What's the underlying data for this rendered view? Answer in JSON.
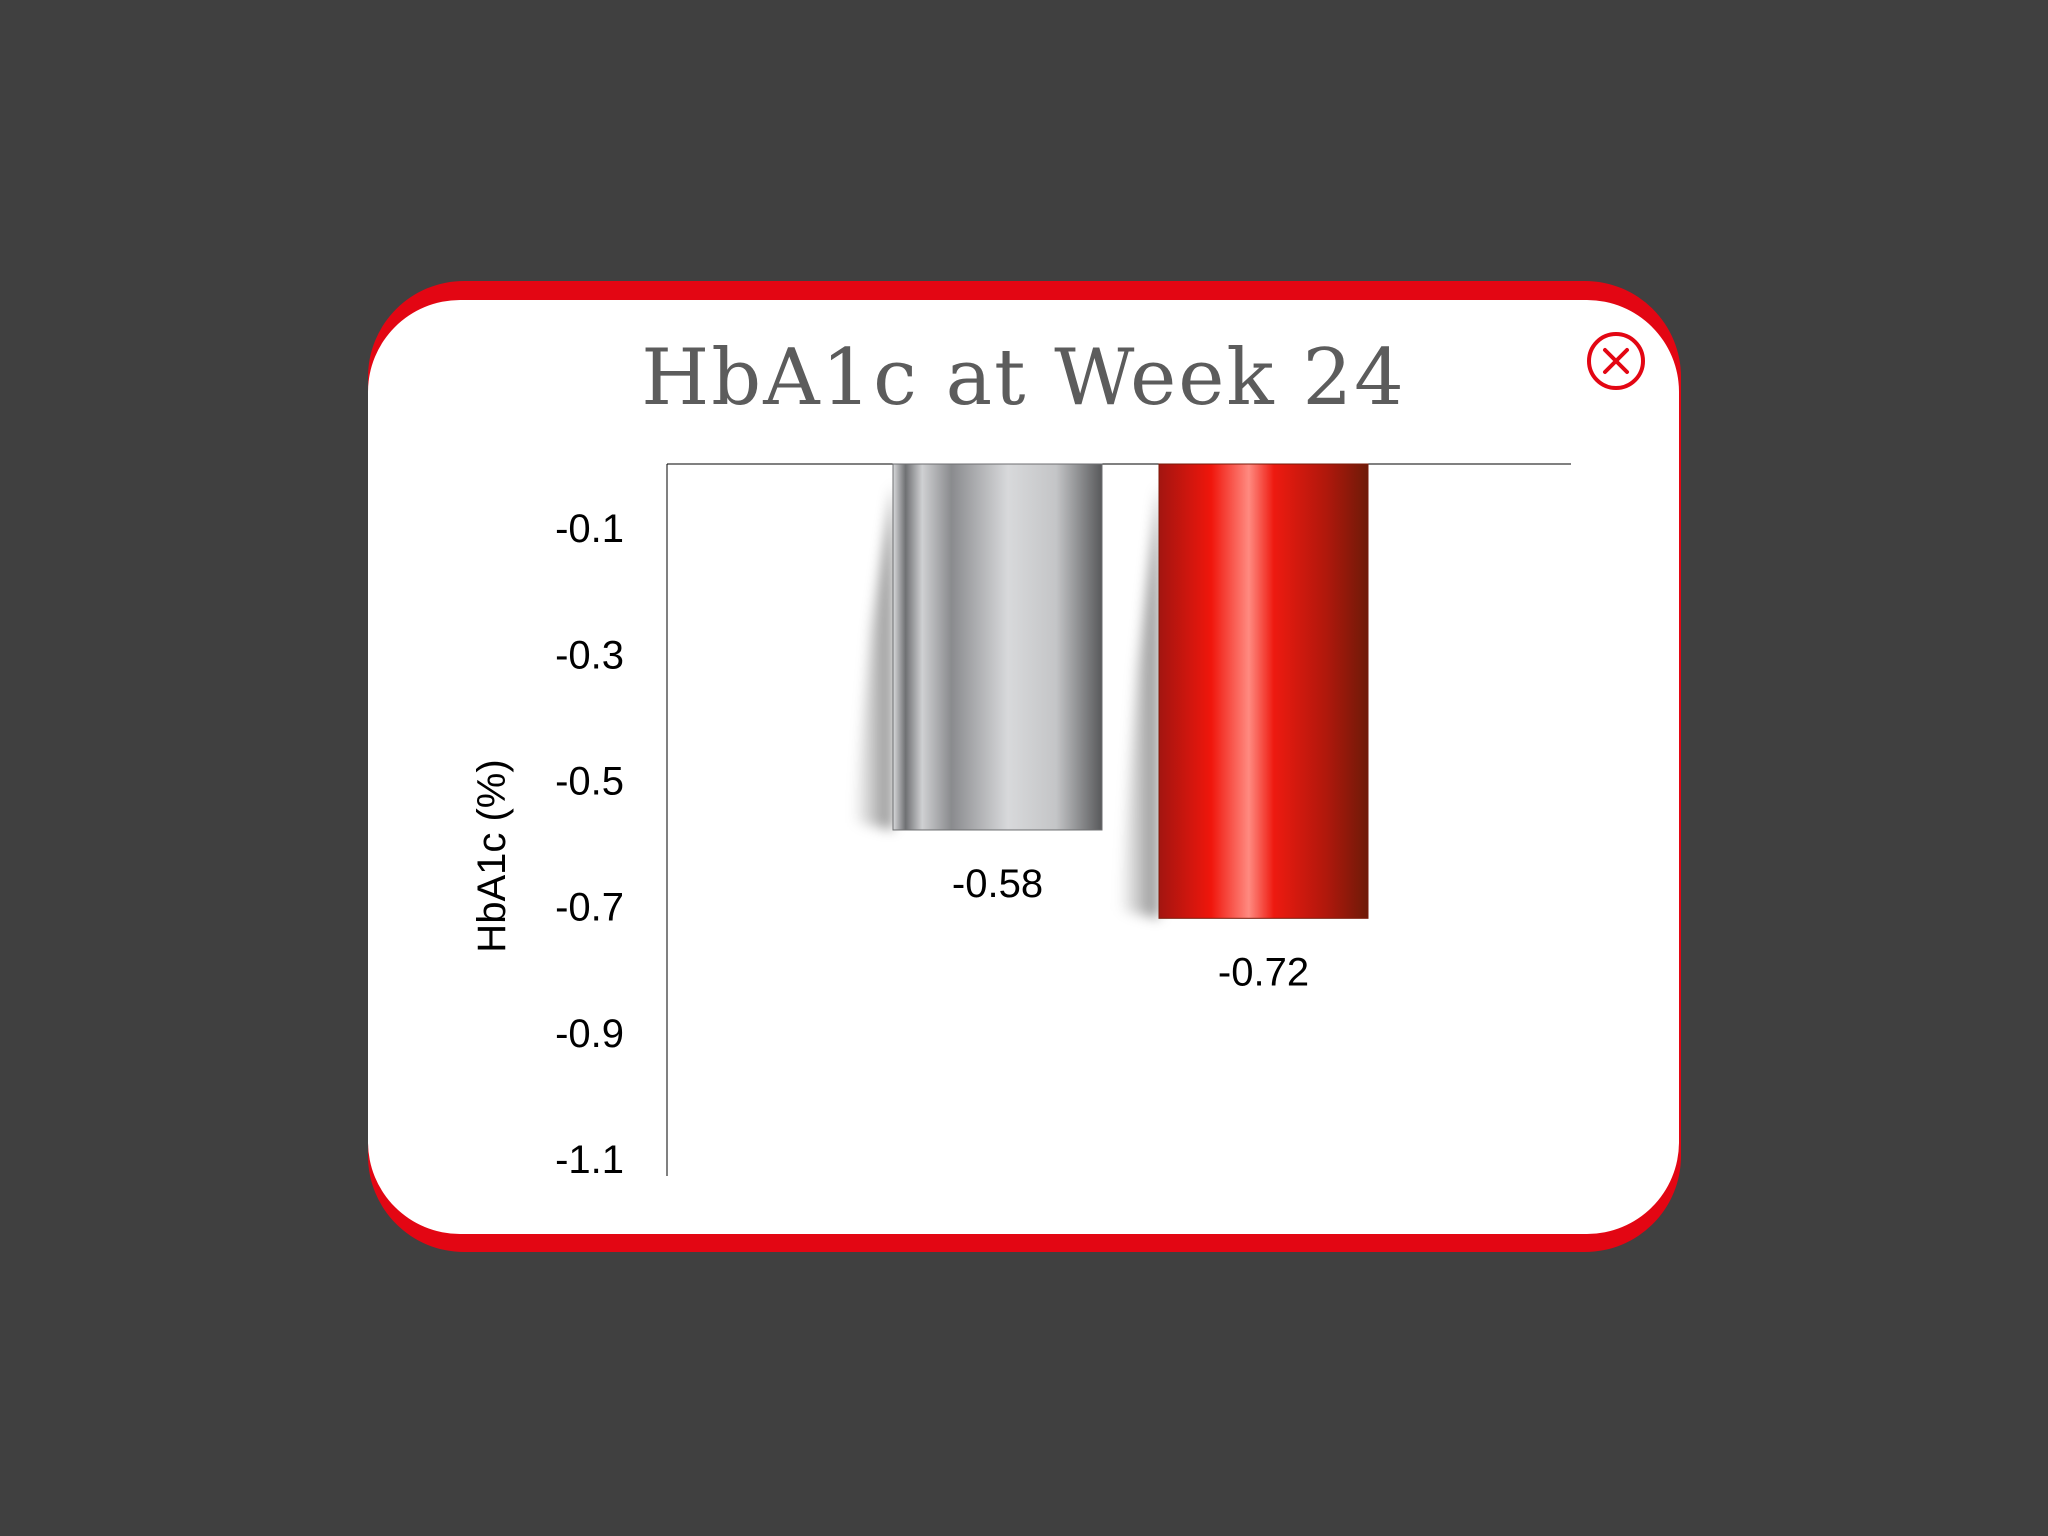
{
  "popup": {
    "close_icon": "close-circle-icon",
    "accent_color": "#e30613",
    "background_color": "#404040"
  },
  "chart_data": {
    "type": "bar",
    "title": "HbA1c at Week 24",
    "ylabel": "HbA1c (%)",
    "xlabel": "",
    "categories": [
      "",
      ""
    ],
    "values": [
      -0.58,
      -0.72
    ],
    "value_labels": [
      "-0.58",
      "-0.72"
    ],
    "bar_colors": [
      "#a9abae",
      "#e8160f"
    ],
    "yticks": [
      -0.1,
      -0.3,
      -0.5,
      -0.7,
      -0.9,
      -1.1
    ],
    "ytick_labels": [
      "-0.1",
      "-0.3",
      "-0.5",
      "-0.7",
      "-0.9",
      "-1.1"
    ],
    "ylim": [
      0,
      -1.12
    ],
    "grid": false,
    "legend": "none"
  }
}
